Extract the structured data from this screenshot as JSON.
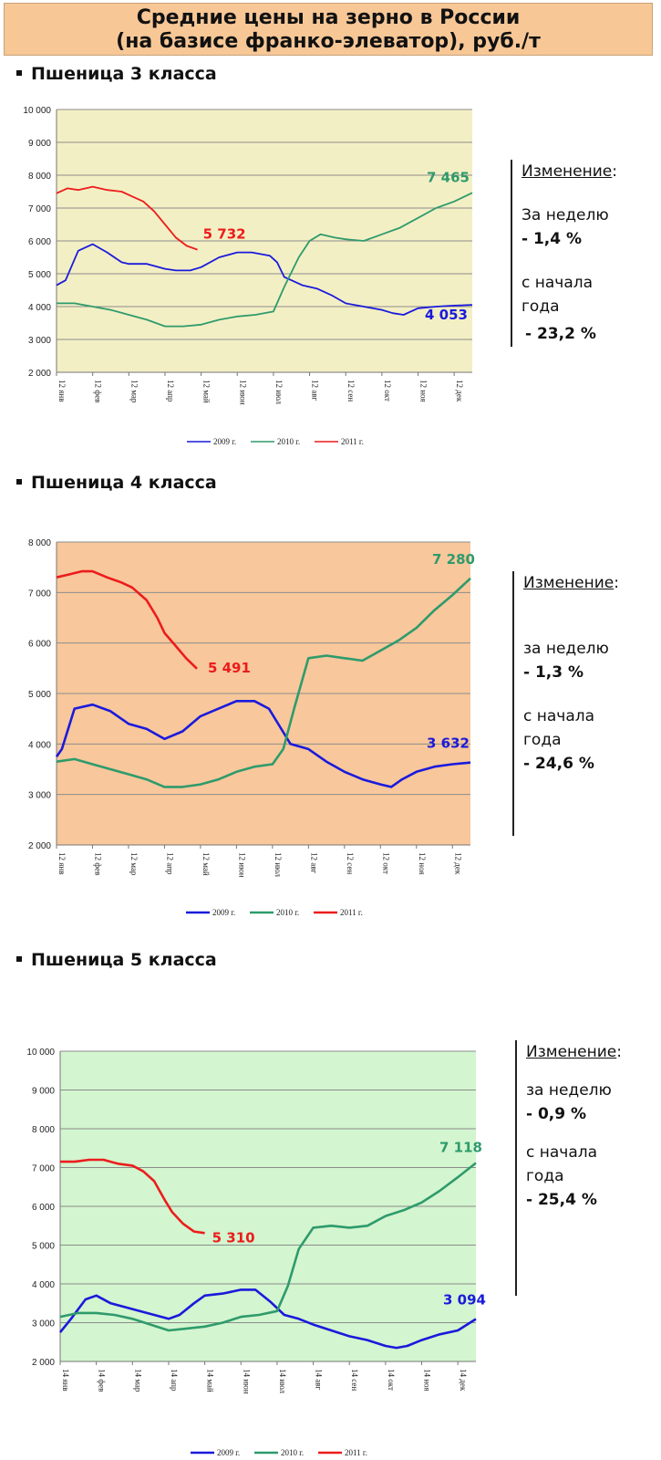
{
  "header": {
    "line1": "Средние цены на зерно в России",
    "line2": "(на базисе франко-элеватор), руб./т"
  },
  "legend_labels": [
    "2009 г.",
    "2010 г.",
    "2011 г."
  ],
  "colors": {
    "y2009": "#1a1adc",
    "y2010": "#2e9b6c",
    "y2011": "#ec1c1c"
  },
  "sections": [
    {
      "title": "Пшеница 3  класса",
      "change": {
        "heading": "Изменение",
        "colon": ":",
        "week_label": "За  неделю",
        "week_value": "- 1,4 %",
        "ytd_label1": "с начала",
        "ytd_label2": "года",
        "ytd_value": "- 23,2 %"
      },
      "end_labels": {
        "y2010": "7 465",
        "y2011": "5 732",
        "y2009": "4 053"
      }
    },
    {
      "title": "Пшеница 4 класса",
      "change": {
        "heading": "Изменение",
        "colon": ":",
        "week_label": "за  неделю",
        "week_value": "- 1,3 %",
        "ytd_label1": "с начала",
        "ytd_label2": "года",
        "ytd_value": "- 24,6 %"
      },
      "end_labels": {
        "y2010": "7 280",
        "y2011": "5 491",
        "y2009": "3 632"
      }
    },
    {
      "title": "Пшеница 5 класса",
      "change": {
        "heading": "Изменение",
        "colon": ":",
        "week_label": "за  неделю",
        "week_value": "- 0,9 %",
        "ytd_label1": "с начала",
        "ytd_label2": "года",
        "ytd_value": "- 25,4 %"
      },
      "end_labels": {
        "y2010": "7 118",
        "y2011": "5 310",
        "y2009": "3 094"
      }
    }
  ],
  "chart_data": [
    {
      "type": "line",
      "title": "Пшеница 3  класса",
      "background": "#f3efc4",
      "ylim": [
        2000,
        10000
      ],
      "yticks": [
        "2 000",
        "3 000",
        "4 000",
        "5 000",
        "6 000",
        "7 000",
        "8 000",
        "9 000",
        "10 000"
      ],
      "categories": [
        "12 янв",
        "12 фев",
        "12 мар",
        "12 апр",
        "12 май",
        "12 июн",
        "12 июл",
        "12 авг",
        "12 сен",
        "12 окт",
        "12 ноя",
        "12 дек"
      ],
      "grid": true,
      "legend": "bottom",
      "series": [
        {
          "name": "2009 г.",
          "color": "#1a1adc",
          "x": [
            0,
            0.25,
            0.6,
            1,
            1.4,
            1.8,
            2,
            2.5,
            3,
            3.3,
            3.7,
            4,
            4.5,
            5,
            5.4,
            5.9,
            6.1,
            6.3,
            6.8,
            7.2,
            7.6,
            8,
            8.5,
            9,
            9.3,
            9.6,
            10,
            10.5,
            11,
            11.5
          ],
          "values": [
            4650,
            4800,
            5700,
            5900,
            5650,
            5350,
            5300,
            5300,
            5150,
            5100,
            5100,
            5200,
            5500,
            5650,
            5650,
            5550,
            5350,
            4900,
            4650,
            4550,
            4350,
            4100,
            4000,
            3900,
            3800,
            3750,
            3950,
            4000,
            4030,
            4053
          ]
        },
        {
          "name": "2010 г.",
          "color": "#2e9b6c",
          "x": [
            0,
            0.5,
            1,
            1.5,
            2,
            2.5,
            3,
            3.5,
            4,
            4.5,
            5,
            5.5,
            6,
            6.3,
            6.7,
            7,
            7.3,
            7.7,
            8,
            8.5,
            9,
            9.5,
            10,
            10.5,
            11,
            11.5
          ],
          "values": [
            4100,
            4100,
            4000,
            3900,
            3750,
            3600,
            3400,
            3400,
            3450,
            3600,
            3700,
            3750,
            3850,
            4600,
            5500,
            6000,
            6200,
            6100,
            6050,
            6000,
            6200,
            6400,
            6700,
            7000,
            7200,
            7465
          ]
        },
        {
          "name": "2011 г.",
          "color": "#ec1c1c",
          "x": [
            0,
            0.3,
            0.6,
            1,
            1.4,
            1.8,
            2.1,
            2.4,
            2.7,
            3,
            3.3,
            3.6,
            3.9
          ],
          "values": [
            7450,
            7600,
            7550,
            7650,
            7550,
            7500,
            7350,
            7200,
            6900,
            6500,
            6100,
            5850,
            5732
          ]
        }
      ]
    },
    {
      "type": "line",
      "title": "Пшеница 4 класса",
      "background": "#f8c79b",
      "ylim": [
        2000,
        8000
      ],
      "yticks": [
        "2 000",
        "3 000",
        "4 000",
        "5 000",
        "6 000",
        "7 000",
        "8 000"
      ],
      "categories": [
        "12 янв",
        "12 фев",
        "12 мар",
        "12 апр",
        "12 май",
        "12 июн",
        "12 июл",
        "12 авг",
        "12 сен",
        "12 окт",
        "12 ноя",
        "12 дек"
      ],
      "grid": true,
      "legend": "bottom",
      "series": [
        {
          "name": "2009 г.",
          "color": "#1a1adc",
          "x": [
            0,
            0.15,
            0.5,
            1,
            1.5,
            2,
            2.5,
            3,
            3.5,
            4,
            4.5,
            5,
            5.5,
            5.9,
            6.2,
            6.5,
            7,
            7.5,
            8,
            8.5,
            9,
            9.3,
            9.6,
            10,
            10.5,
            11,
            11.5
          ],
          "values": [
            3750,
            3900,
            4700,
            4780,
            4650,
            4400,
            4300,
            4100,
            4250,
            4550,
            4700,
            4850,
            4850,
            4700,
            4350,
            4000,
            3900,
            3650,
            3450,
            3300,
            3200,
            3150,
            3300,
            3450,
            3550,
            3600,
            3632
          ]
        },
        {
          "name": "2010 г.",
          "color": "#2e9b6c",
          "x": [
            0,
            0.5,
            1,
            1.5,
            2,
            2.5,
            3,
            3.5,
            4,
            4.5,
            5,
            5.5,
            6,
            6.3,
            6.6,
            7,
            7.5,
            8,
            8.5,
            9,
            9.5,
            10,
            10.5,
            11,
            11.5
          ],
          "values": [
            3650,
            3700,
            3600,
            3500,
            3400,
            3300,
            3150,
            3150,
            3200,
            3300,
            3450,
            3550,
            3600,
            3900,
            4700,
            5700,
            5750,
            5700,
            5650,
            5850,
            6050,
            6300,
            6650,
            6950,
            7280
          ]
        },
        {
          "name": "2011 г.",
          "color": "#ec1c1c",
          "x": [
            0,
            0.3,
            0.7,
            1,
            1.4,
            1.8,
            2.1,
            2.5,
            2.8,
            3,
            3.3,
            3.6,
            3.9
          ],
          "values": [
            7300,
            7350,
            7420,
            7420,
            7300,
            7200,
            7100,
            6850,
            6500,
            6200,
            5950,
            5700,
            5491
          ]
        }
      ]
    },
    {
      "type": "line",
      "title": "Пшеница 5 класса",
      "background": "#d3f5cf",
      "ylim": [
        2000,
        10000
      ],
      "yticks": [
        "2 000",
        "3 000",
        "4 000",
        "5 000",
        "6 000",
        "7 000",
        "8 000",
        "9 000",
        "10 000"
      ],
      "categories": [
        "14 янв",
        "14 фев",
        "14 мар",
        "14 апр",
        "14 май",
        "14 июн",
        "14 июл",
        "14 авг",
        "14 сен",
        "14 окт",
        "14 ноя",
        "14 дек"
      ],
      "grid": true,
      "legend": "bottom",
      "series": [
        {
          "name": "2009 г.",
          "color": "#1a1adc",
          "x": [
            0,
            0.3,
            0.7,
            1,
            1.4,
            1.8,
            2.2,
            2.6,
            3,
            3.3,
            3.7,
            4,
            4.5,
            5,
            5.4,
            5.8,
            6.2,
            6.6,
            7,
            7.5,
            8,
            8.5,
            9,
            9.3,
            9.6,
            10,
            10.5,
            11,
            11.5
          ],
          "values": [
            2750,
            3100,
            3600,
            3700,
            3500,
            3400,
            3300,
            3200,
            3100,
            3200,
            3500,
            3700,
            3750,
            3850,
            3850,
            3550,
            3200,
            3100,
            2950,
            2800,
            2650,
            2550,
            2400,
            2350,
            2400,
            2550,
            2700,
            2800,
            3094
          ]
        },
        {
          "name": "2010 г.",
          "color": "#2e9b6c",
          "x": [
            0,
            0.5,
            1,
            1.5,
            2,
            2.5,
            3,
            3.5,
            4,
            4.5,
            5,
            5.5,
            6,
            6.3,
            6.6,
            7,
            7.5,
            8,
            8.5,
            9,
            9.5,
            10,
            10.5,
            11,
            11.5
          ],
          "values": [
            3150,
            3250,
            3250,
            3200,
            3100,
            2950,
            2800,
            2850,
            2900,
            3000,
            3150,
            3200,
            3300,
            3950,
            4900,
            5450,
            5500,
            5450,
            5500,
            5750,
            5900,
            6100,
            6400,
            6750,
            7118
          ]
        },
        {
          "name": "2011 г.",
          "color": "#ec1c1c",
          "x": [
            0,
            0.4,
            0.8,
            1.2,
            1.6,
            2,
            2.3,
            2.6,
            2.9,
            3.1,
            3.4,
            3.7,
            4
          ],
          "values": [
            7150,
            7150,
            7200,
            7200,
            7100,
            7050,
            6900,
            6650,
            6150,
            5850,
            5550,
            5350,
            5310
          ]
        }
      ]
    }
  ]
}
